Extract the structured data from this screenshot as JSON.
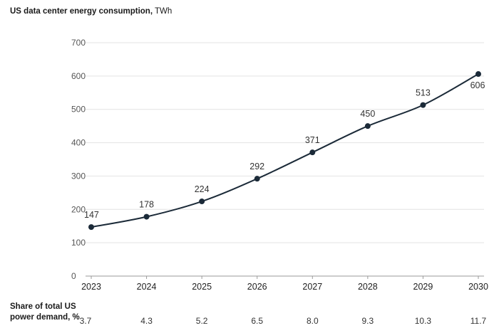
{
  "chart_data": {
    "type": "line",
    "title_bold": "US data center energy consumption,",
    "title_unit": "TWh",
    "x": [
      "2023",
      "2024",
      "2025",
      "2026",
      "2027",
      "2028",
      "2029",
      "2030"
    ],
    "series": [
      {
        "values": [
          147,
          178,
          224,
          292,
          371,
          450,
          513,
          606
        ]
      }
    ],
    "data_labels": [
      "147",
      "178",
      "224",
      "292",
      "371",
      "450",
      "513",
      "606"
    ],
    "ylim": [
      0,
      700
    ],
    "yticks": [
      "0",
      "100",
      "200",
      "300",
      "400",
      "500",
      "600",
      "700"
    ],
    "grid": true,
    "line_color": "#1b2a38",
    "share_row": {
      "label": "Share of total US power demand, %",
      "values": [
        "3.7",
        "4.3",
        "5.2",
        "6.5",
        "8.0",
        "9.3",
        "10.3",
        "11.7"
      ]
    }
  }
}
